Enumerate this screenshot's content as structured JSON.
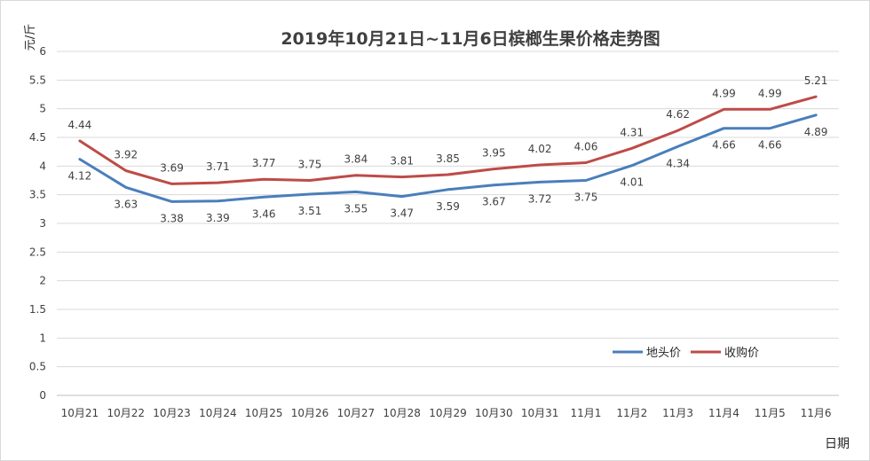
{
  "chart_data": {
    "type": "line",
    "title": "2019年10月21日~11月6日槟榔生果价格走势图",
    "xlabel": "日期",
    "ylabel": "元/斤",
    "ylim": [
      0,
      6
    ],
    "yticks": [
      "0",
      "0.5",
      "1",
      "1.5",
      "2",
      "2.5",
      "3",
      "3.5",
      "4",
      "4.5",
      "5",
      "5.5",
      "6"
    ],
    "grid": true,
    "legend_position": "bottom-right",
    "categories": [
      "10月21",
      "10月22",
      "10月23",
      "10月24",
      "10月25",
      "10月26",
      "10月27",
      "10月28",
      "10月29",
      "10月30",
      "10月31",
      "11月1",
      "11月2",
      "11月3",
      "11月4",
      "11月5",
      "11月6"
    ],
    "series": [
      {
        "name": "地头价",
        "color": "#4a7ebb",
        "values": [
          4.12,
          3.63,
          3.38,
          3.39,
          3.46,
          3.51,
          3.55,
          3.47,
          3.59,
          3.67,
          3.72,
          3.75,
          4.01,
          4.34,
          4.66,
          4.66,
          4.89
        ],
        "labels": [
          "4.12",
          "3.63",
          "3.38",
          "3.39",
          "3.46",
          "3.51",
          "3.55",
          "3.47",
          "3.59",
          "3.67",
          "3.72",
          "3.75",
          "4.01",
          "4.34",
          "4.66",
          "4.66",
          "4.89"
        ]
      },
      {
        "name": "收购价",
        "color": "#be4b48",
        "values": [
          4.44,
          3.92,
          3.69,
          3.71,
          3.77,
          3.75,
          3.84,
          3.81,
          3.85,
          3.95,
          4.02,
          4.06,
          4.31,
          4.62,
          4.99,
          4.99,
          5.21
        ],
        "labels": [
          "4.44",
          "3.92",
          "3.69",
          "3.71",
          "3.77",
          "3.75",
          "3.84",
          "3.81",
          "3.85",
          "3.95",
          "4.02",
          "4.06",
          "4.31",
          "4.62",
          "4.99",
          "4.99",
          "5.21"
        ]
      }
    ]
  }
}
